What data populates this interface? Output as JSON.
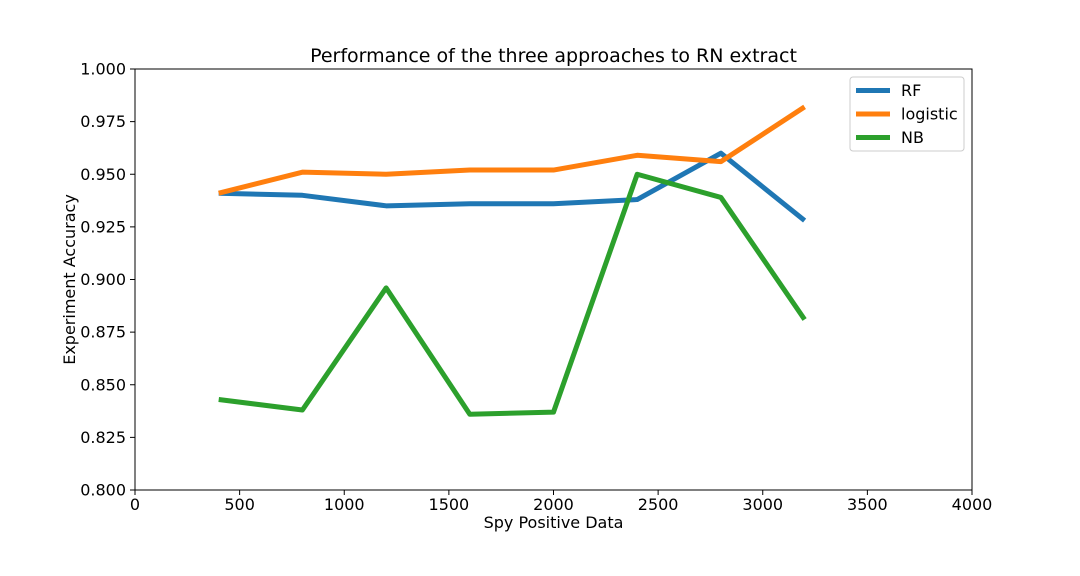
{
  "chart_data": {
    "type": "line",
    "title": "Performance of the three approaches to RN extract",
    "xlabel": "Spy Positive Data",
    "ylabel": "Experiment Accuracy",
    "xlim": [
      0,
      4000
    ],
    "ylim": [
      0.8,
      1.0
    ],
    "x_ticks": [
      0,
      500,
      1000,
      1500,
      2000,
      2500,
      3000,
      3500,
      4000
    ],
    "x_tick_labels": [
      "0",
      "500",
      "1000",
      "1500",
      "2000",
      "2500",
      "3000",
      "3500",
      "4000"
    ],
    "y_ticks": [
      0.8,
      0.825,
      0.85,
      0.875,
      0.9,
      0.925,
      0.95,
      0.975,
      1.0
    ],
    "y_tick_labels": [
      "0.800",
      "0.825",
      "0.850",
      "0.875",
      "0.900",
      "0.925",
      "0.950",
      "0.975",
      "1.000"
    ],
    "grid": false,
    "legend_position": "top-right",
    "x": [
      400,
      800,
      1200,
      1600,
      2000,
      2400,
      2800,
      3200
    ],
    "series": [
      {
        "name": "RF",
        "color": "#1f77b4",
        "values": [
          0.941,
          0.94,
          0.935,
          0.936,
          0.936,
          0.938,
          0.96,
          0.928
        ]
      },
      {
        "name": "logistic",
        "color": "#ff7f0e",
        "values": [
          0.941,
          0.951,
          0.95,
          0.952,
          0.952,
          0.959,
          0.956,
          0.982
        ]
      },
      {
        "name": "NB",
        "color": "#2ca02c",
        "values": [
          0.843,
          0.838,
          0.896,
          0.836,
          0.837,
          0.95,
          0.939,
          0.881
        ]
      }
    ]
  }
}
